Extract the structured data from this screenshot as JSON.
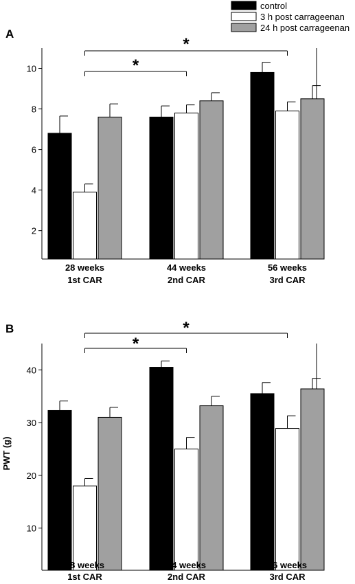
{
  "legend": [
    {
      "label": "control",
      "color": "#000000"
    },
    {
      "label": "3 h post carrageenan",
      "color": "#ffffff"
    },
    {
      "label": "24 h post carrageenan",
      "color": "#a0a0a0"
    }
  ],
  "chart_data": [
    {
      "type": "bar",
      "panel": "A",
      "ylabel": "",
      "categories": [
        "28 weeks\n1st CAR",
        "44 weeks\n2nd CAR",
        "56 weeks\n3rd CAR"
      ],
      "series": [
        {
          "name": "control",
          "color": "#000000",
          "values": [
            6.8,
            7.6,
            9.8
          ],
          "errors": [
            0.85,
            0.55,
            0.5
          ]
        },
        {
          "name": "3 h post carrageenan",
          "color": "#ffffff",
          "values": [
            3.9,
            7.8,
            7.9
          ],
          "errors": [
            0.4,
            0.4,
            0.45
          ]
        },
        {
          "name": "24 h post carrageenan",
          "color": "#a0a0a0",
          "values": [
            7.6,
            8.4,
            8.5
          ],
          "errors": [
            0.65,
            0.4,
            0.65
          ]
        }
      ],
      "ylim": [
        0.6,
        11
      ],
      "yticks": [
        2,
        4,
        6,
        8,
        10
      ],
      "significance": [
        {
          "from_category": 0,
          "to_category": 1,
          "label": "*"
        },
        {
          "from_category": 0,
          "to_category": 2,
          "label": "*"
        }
      ]
    },
    {
      "type": "bar",
      "panel": "B",
      "ylabel": "PWT (g)",
      "categories": [
        "28 weeks\n1st CAR",
        "44 weeks\n2nd CAR",
        "56 weeks\n3rd CAR"
      ],
      "series": [
        {
          "name": "control",
          "color": "#000000",
          "values": [
            32.3,
            40.5,
            35.5
          ],
          "errors": [
            1.8,
            1.2,
            2.1
          ]
        },
        {
          "name": "3 h post carrageenan",
          "color": "#ffffff",
          "values": [
            18.0,
            25.0,
            28.9
          ],
          "errors": [
            1.4,
            2.2,
            2.4
          ]
        },
        {
          "name": "24 h post carrageenan",
          "color": "#a0a0a0",
          "values": [
            31.0,
            33.2,
            36.4
          ],
          "errors": [
            1.9,
            1.8,
            2.0
          ]
        }
      ],
      "ylim": [
        2,
        45
      ],
      "yticks": [
        10,
        20,
        30,
        40
      ],
      "significance": [
        {
          "from_category": 0,
          "to_category": 1,
          "label": "*"
        },
        {
          "from_category": 0,
          "to_category": 2,
          "label": "*"
        }
      ]
    }
  ]
}
